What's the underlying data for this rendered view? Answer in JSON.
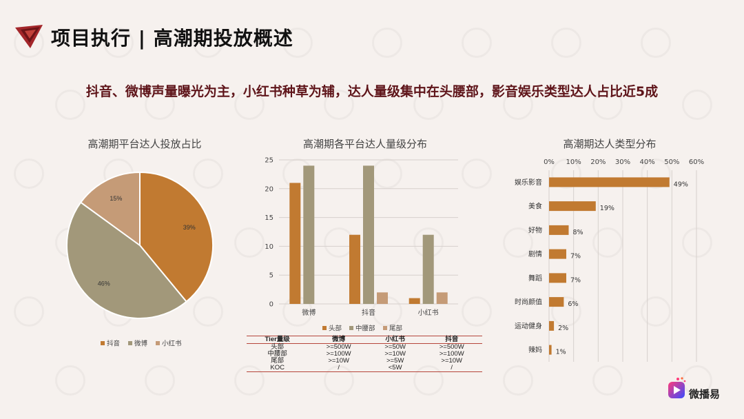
{
  "header": {
    "title": "项目执行 | 高潮期投放概述"
  },
  "headline": "抖音、微博声量曝光为主，小红书种草为辅，达人量级集中在头腰部，影音娱乐类型达人占比近5成",
  "brand": {
    "name": "微播易"
  },
  "colors": {
    "head": "#c17a31",
    "waist": "#a2987a",
    "tail": "#c59b77",
    "headline": "#5e1419",
    "logo": "#a3262a"
  },
  "chart_data": [
    {
      "type": "pie",
      "title": "高潮期平台达人投放占比",
      "categories": [
        "抖音",
        "微博",
        "小红书"
      ],
      "values": [
        39,
        46,
        15
      ],
      "labels": [
        "39%",
        "46%",
        "15%"
      ],
      "colors": [
        "#c17a31",
        "#a2987a",
        "#c59b77"
      ],
      "legend": "bottom"
    },
    {
      "type": "bar",
      "title": "高潮期各平台达人量级分布",
      "categories": [
        "微博",
        "抖音",
        "小红书"
      ],
      "series": [
        {
          "name": "头部",
          "values": [
            21,
            12,
            1
          ],
          "color": "#c17a31"
        },
        {
          "name": "中腰部",
          "values": [
            24,
            24,
            12
          ],
          "color": "#a2987a"
        },
        {
          "name": "尾部",
          "values": [
            0,
            2,
            2
          ],
          "color": "#c59b77"
        }
      ],
      "yticks": [
        "0",
        "5",
        "10",
        "15",
        "20",
        "25"
      ],
      "ylim": [
        0,
        25
      ],
      "grid": true,
      "legend": "bottom"
    },
    {
      "type": "bar",
      "orientation": "horizontal",
      "title": "高潮期达人类型分布",
      "categories": [
        "娱乐影音",
        "美食",
        "好物",
        "剧情",
        "舞蹈",
        "时尚颜值",
        "运动健身",
        "辣妈"
      ],
      "values": [
        49,
        19,
        8,
        7,
        7,
        6,
        2,
        1
      ],
      "labels": [
        "49%",
        "19%",
        "8%",
        "7%",
        "7%",
        "6%",
        "2%",
        "1%"
      ],
      "xticks": [
        "0%",
        "10%",
        "20%",
        "30%",
        "40%",
        "50%",
        "60%"
      ],
      "xlim": [
        0,
        60
      ],
      "color": "#c17a31",
      "grid": true
    }
  ],
  "tier_table": {
    "headers": [
      "Tier量级",
      "微博",
      "小红书",
      "抖音"
    ],
    "rows": [
      [
        "头部",
        ">=500W",
        ">=50W",
        ">=500W"
      ],
      [
        "中腰部",
        ">=100W",
        ">=10W",
        ">=100W"
      ],
      [
        "尾部",
        ">=10W",
        ">=5W",
        ">=10W"
      ],
      [
        "KOC",
        "/",
        "<5W",
        "/"
      ]
    ]
  }
}
